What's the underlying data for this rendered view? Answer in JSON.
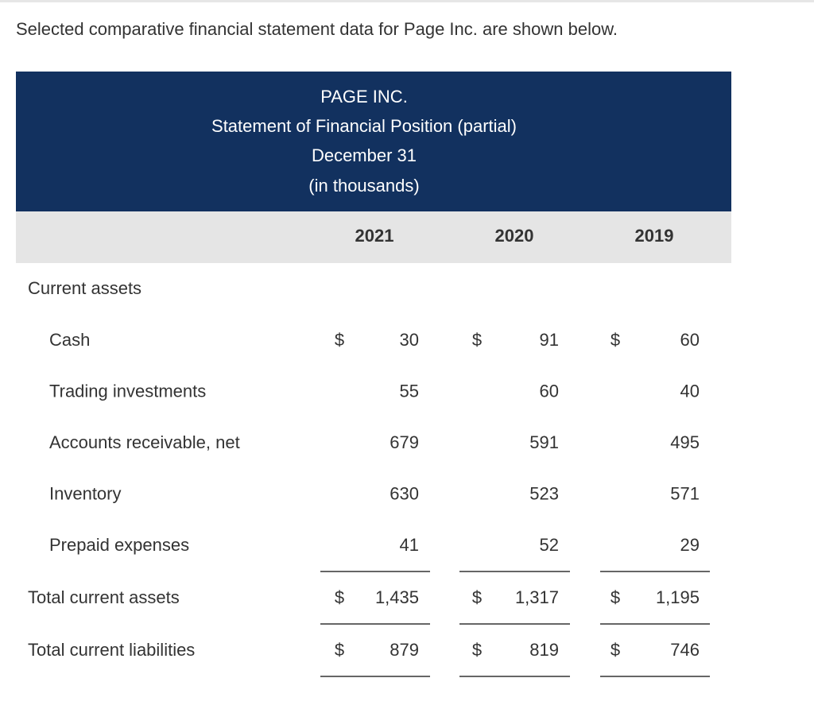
{
  "intro": "Selected comparative financial statement data for Page Inc. are shown below.",
  "table": {
    "header": [
      "PAGE INC.",
      "Statement of Financial Position (partial)",
      "December 31",
      "(in thousands)"
    ],
    "columns": [
      "2021",
      "2020",
      "2019"
    ],
    "currency": "$",
    "section": {
      "label": "Current assets",
      "rows": [
        {
          "label": "Cash",
          "values": [
            "30",
            "91",
            "60"
          ],
          "currency": "$"
        },
        {
          "label": "Trading investments",
          "values": [
            "55",
            "60",
            "40"
          ]
        },
        {
          "label": "Accounts receivable, net",
          "values": [
            "679",
            "591",
            "495"
          ]
        },
        {
          "label": "Inventory",
          "values": [
            "630",
            "523",
            "571"
          ]
        },
        {
          "label": "Prepaid expenses",
          "values": [
            "41",
            "52",
            "29"
          ]
        }
      ]
    },
    "totals": [
      {
        "label": "Total current assets",
        "values": [
          "1,435",
          "1,317",
          "1,195"
        ],
        "currency": "$"
      },
      {
        "label": "Total current liabilities",
        "values": [
          "879",
          "819",
          "746"
        ],
        "currency": "$"
      }
    ]
  }
}
